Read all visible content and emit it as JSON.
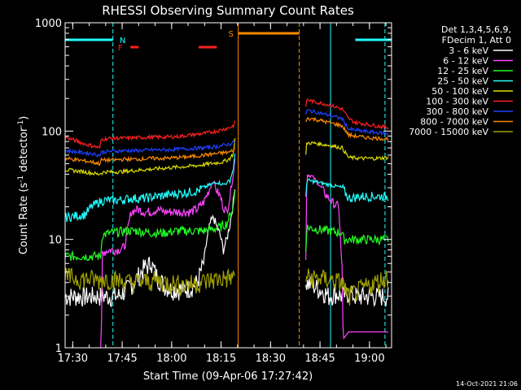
{
  "chart_data": {
    "type": "line",
    "title": "RHESSI Observing Summary Count Rates",
    "xlabel": "Start Time (09-Apr-06 17:27:42)",
    "ylabel_main": "Count Rate (s",
    "ylabel_sup1": "-1",
    "ylabel_mid": " detector",
    "ylabel_sup2": "-1",
    "ylabel_end": ")",
    "x_unit": "minutes since 17:27:42",
    "x_range": [
      0,
      99
    ],
    "y_scale": "log",
    "y_range": [
      1,
      1000
    ],
    "x_ticks": [
      {
        "t": 2.3,
        "label": "17:30"
      },
      {
        "t": 17.3,
        "label": "17:45"
      },
      {
        "t": 32.3,
        "label": "18:00"
      },
      {
        "t": 47.3,
        "label": "18:15"
      },
      {
        "t": 62.3,
        "label": "18:30"
      },
      {
        "t": 77.3,
        "label": "18:45"
      },
      {
        "t": 92.3,
        "label": "19:00"
      }
    ],
    "y_ticks": [
      {
        "v": 1,
        "label": "1"
      },
      {
        "v": 10,
        "label": "10"
      },
      {
        "v": 100,
        "label": "100"
      },
      {
        "v": 1000,
        "label": "1000"
      }
    ],
    "legend_header": [
      "Det 1,3,4,5,6,9,",
      "FDecim 1, Att 0"
    ],
    "legend_position": "right",
    "series": [
      {
        "name": "3 - 6 keV",
        "color": "#ffffff",
        "segments": [
          {
            "t": [
              0,
              11,
              11.1,
              16,
              19,
              22,
              24,
              26,
              28,
              30,
              32,
              34,
              36,
              38,
              40,
              42,
              43,
              44,
              45,
              46,
              47,
              48,
              49,
              50,
              51,
              51.5
            ],
            "v": [
              3.0,
              3.0,
              3.0,
              3.0,
              3.5,
              4.5,
              5.5,
              6.0,
              4.5,
              3.8,
              3.5,
              3.5,
              3.5,
              3.6,
              4.0,
              6.0,
              10,
              14,
              16,
              13,
              11,
              8,
              10,
              14,
              22,
              30
            ]
          },
          {
            "t": [
              73,
              75,
              77,
              79,
              80,
              82,
              84,
              86,
              88,
              90,
              92,
              94,
              96,
              98
            ],
            "v": [
              4.0,
              3.8,
              3.5,
              3.2,
              3.0,
              3.2,
              3.0,
              3.2,
              3.0,
              3.0,
              3.0,
              3.0,
              3.0,
              3.0
            ]
          }
        ]
      },
      {
        "name": "6 - 12 keV",
        "color": "#ff44ff",
        "segments": [
          {
            "t": [
              10.8,
              11,
              11.2,
              12,
              14,
              16,
              18,
              20,
              22,
              24,
              26,
              28,
              30,
              32,
              34,
              36,
              38,
              40,
              42,
              44,
              45,
              46,
              47,
              48,
              49,
              50,
              51,
              51.5
            ],
            "v": [
              1.0,
              1.0,
              7.5,
              7.8,
              8.0,
              8.0,
              8.5,
              18,
              19,
              18,
              18,
              19,
              18,
              18,
              18,
              18,
              18,
              19,
              22,
              30,
              35,
              28,
              25,
              20,
              18,
              25,
              40,
              55
            ]
          },
          {
            "t": [
              73,
              73.3,
              75,
              77,
              79,
              81,
              83,
              84,
              84.3,
              86,
              90,
              94,
              98
            ],
            "v": [
              7.0,
              40,
              38,
              32,
              26,
              22,
              20,
              5.0,
              1.2,
              1.4,
              1.4,
              1.4,
              1.4
            ]
          }
        ]
      },
      {
        "name": "12 - 25 keV",
        "color": "#22ff22",
        "segments": [
          {
            "t": [
              0,
              10.8,
              11.2,
              14,
              18,
              22,
              26,
              30,
              34,
              38,
              42,
              45,
              47,
              49,
              51,
              51.5
            ],
            "v": [
              7.0,
              7.0,
              11,
              11.5,
              12,
              12,
              11.5,
              11.5,
              12,
              12,
              12,
              12.5,
              13,
              14,
              20,
              28
            ]
          },
          {
            "t": [
              73,
              73.3,
              76,
              80,
              84,
              84.5,
              88,
              92,
              98
            ],
            "v": [
              8.0,
              13,
              12.5,
              12,
              11.5,
              10,
              10,
              10,
              10
            ]
          }
        ]
      },
      {
        "name": "25 - 50 keV",
        "color": "#22ffff",
        "segments": [
          {
            "t": [
              0,
              6,
              8,
              10,
              12,
              16,
              20,
              24,
              28,
              32,
              36,
              40,
              42,
              44,
              46,
              48,
              50,
              51,
              51.5
            ],
            "v": [
              16,
              17,
              20,
              22,
              23,
              23,
              24,
              24,
              25,
              26,
              27,
              28,
              30,
              32,
              34,
              32,
              35,
              45,
              60
            ]
          },
          {
            "t": [
              73,
              73.3,
              76,
              80,
              84,
              86,
              90,
              94,
              98
            ],
            "v": [
              25,
              35,
              34,
              32,
              30,
              24,
              25,
              25,
              25
            ]
          }
        ]
      },
      {
        "name": "50 - 100 keV",
        "color": "#dddd00",
        "segments": [
          {
            "t": [
              0,
              6,
              8,
              10,
              12,
              16,
              20,
              24,
              28,
              32,
              36,
              40,
              44,
              48,
              50,
              51,
              51.5
            ],
            "v": [
              44,
              42,
              41,
              40,
              42,
              42,
              43,
              44,
              45,
              46,
              47,
              48,
              50,
              52,
              56,
              62,
              85
            ]
          },
          {
            "t": [
              73,
              73.3,
              76,
              80,
              84,
              86,
              90,
              94,
              98
            ],
            "v": [
              60,
              78,
              77,
              74,
              70,
              57,
              56,
              56,
              57
            ]
          }
        ]
      },
      {
        "name": "100 - 300 keV",
        "color": "#ff2020",
        "segments": [
          {
            "t": [
              0,
              3,
              6,
              9,
              10.5,
              11,
              14,
              18,
              22,
              26,
              30,
              34,
              38,
              42,
              46,
              48,
              50,
              51,
              51.5
            ],
            "v": [
              88,
              82,
              76,
              72,
              70,
              84,
              86,
              86,
              87,
              88,
              88,
              89,
              92,
              95,
              100,
              104,
              108,
              112,
              120
            ]
          },
          {
            "t": [
              73,
              73.3,
              76,
              80,
              84,
              86,
              88,
              92,
              96,
              98
            ],
            "v": [
              170,
              195,
              185,
              175,
              160,
              130,
              120,
              115,
              110,
              108
            ]
          }
        ]
      },
      {
        "name": "300 - 800 keV",
        "color": "#2040ff",
        "segments": [
          {
            "t": [
              0,
              4,
              8,
              10.5,
              11,
              14,
              18,
              22,
              26,
              30,
              34,
              38,
              42,
              46,
              50,
              51.5
            ],
            "v": [
              66,
              64,
              62,
              60,
              64,
              65,
              66,
              66,
              67,
              67,
              68,
              69,
              70,
              72,
              76,
              80
            ]
          },
          {
            "t": [
              73,
              73.3,
              76,
              80,
              84,
              86,
              90,
              94,
              98
            ],
            "v": [
              140,
              155,
              150,
              140,
              130,
              104,
              100,
              97,
              95
            ]
          }
        ]
      },
      {
        "name": "800 - 7000 keV",
        "color": "#ff8c00",
        "segments": [
          {
            "t": [
              0,
              4,
              8,
              10.5,
              11,
              14,
              18,
              22,
              26,
              30,
              34,
              38,
              42,
              46,
              50,
              51.5
            ],
            "v": [
              56,
              54,
              52,
              50,
              54,
              54,
              55,
              55,
              56,
              56,
              57,
              58,
              60,
              62,
              64,
              68
            ]
          },
          {
            "t": [
              73,
              73.3,
              76,
              80,
              84,
              86,
              90,
              94,
              98
            ],
            "v": [
              120,
              132,
              128,
              120,
              112,
              92,
              88,
              86,
              85
            ]
          }
        ]
      },
      {
        "name": "7000 - 15000 keV",
        "color": "#a0a000",
        "segments": [
          {
            "t": [
              0,
              4,
              8,
              10.5,
              11,
              16,
              20,
              24,
              28,
              32,
              36,
              40,
              44,
              48,
              51.5
            ],
            "v": [
              4.5,
              4.4,
              4.3,
              4.2,
              4.4,
              4.2,
              4.0,
              4.1,
              4.2,
              4.0,
              3.8,
              4.0,
              4.2,
              4.4,
              4.5
            ]
          },
          {
            "t": [
              73,
              76,
              80,
              84,
              86,
              90,
              94,
              98
            ],
            "v": [
              4.5,
              4.4,
              4.3,
              4.0,
              3.0,
              3.5,
              4.0,
              4.6
            ]
          }
        ]
      }
    ],
    "flag_rows": [
      {
        "label": "N",
        "color": "#22ffff",
        "label_t": 16.5,
        "row": 1,
        "bars": [
          [
            0,
            14.5
          ],
          [
            88,
            99
          ]
        ]
      },
      {
        "label": "F",
        "color": "#ff2020",
        "label_t": 16,
        "row": 2,
        "bars": [
          [
            19.8,
            22.3
          ],
          [
            40.5,
            46
          ]
        ]
      },
      {
        "label": "S",
        "color": "#ff8c00",
        "label_t": 49.5,
        "row": 0,
        "bars": [
          [
            52.5,
            71
          ]
        ]
      }
    ],
    "vertical_lines": [
      {
        "t": 0,
        "color": "#22ffff",
        "dash": false
      },
      {
        "t": 14.5,
        "color": "#22ffff",
        "dash": true
      },
      {
        "t": 52.5,
        "color": "#ff8c00",
        "dash": false
      },
      {
        "t": 71,
        "color": "#ff8c00",
        "dash": true
      },
      {
        "t": 80.5,
        "color": "#22ffff",
        "dash": false
      },
      {
        "t": 97,
        "color": "#22ffff",
        "dash": true
      }
    ],
    "grid": false,
    "footer_date": "14-Oct-2021 21:06"
  }
}
